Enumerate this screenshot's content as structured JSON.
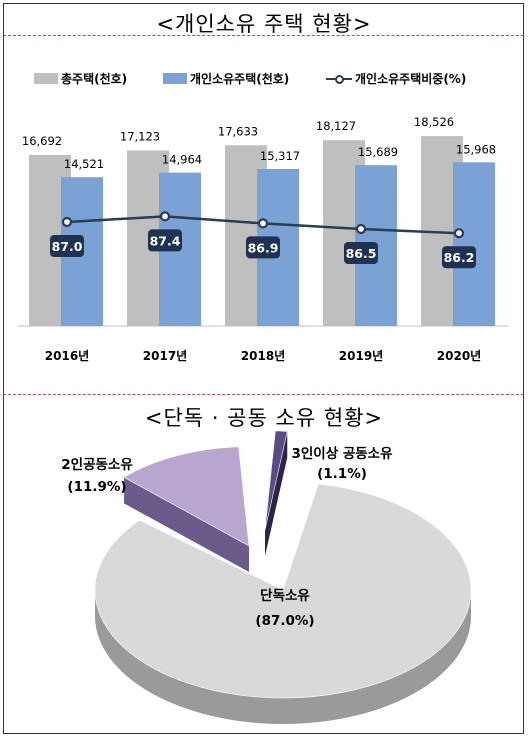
{
  "bar_chart": {
    "title": "<개인소유 주택 현황>",
    "legend": [
      "총주택(천호)",
      "개인소유주택(천호)",
      "개인소유주택비중(%)"
    ],
    "colors": {
      "total": "#bfbfbf",
      "individual": "#7ba2d4",
      "line": "#2b3c54",
      "badge": "#1f3252"
    }
  },
  "pie_chart": {
    "title": "<단독 · 공동 소유 현황>",
    "colors": {
      "single": "#d9d9d9",
      "two": "#b8a6cf",
      "three": "#5b4a86"
    }
  },
  "chart_data": [
    {
      "type": "bar",
      "categories": [
        "2016년",
        "2017년",
        "2018년",
        "2019년",
        "2020년"
      ],
      "series": [
        {
          "name": "총주택(천호)",
          "values": [
            16692,
            17123,
            17633,
            18127,
            18526
          ],
          "labels": [
            "16,692",
            "17,123",
            "17,633",
            "18,127",
            "18,526"
          ]
        },
        {
          "name": "개인소유주택(천호)",
          "values": [
            14521,
            14964,
            15317,
            15689,
            15968
          ],
          "labels": [
            "14,521",
            "14,964",
            "15,317",
            "15,689",
            "15,968"
          ]
        },
        {
          "name": "개인소유주택비중(%)",
          "type": "line",
          "values": [
            87.0,
            87.4,
            86.9,
            86.5,
            86.2
          ],
          "labels": [
            "87.0",
            "87.4",
            "86.9",
            "86.5",
            "86.2"
          ]
        }
      ],
      "title": "<개인소유 주택 현황>",
      "legend_position": "top"
    },
    {
      "type": "pie",
      "title": "<단독 · 공동 소유 현황>",
      "slices": [
        {
          "label": "단독소유",
          "value": 87.0,
          "value_label": "(87.0%)"
        },
        {
          "label": "2인공동소유",
          "value": 11.9,
          "value_label": "(11.9%)"
        },
        {
          "label": "3인이상 공동소유",
          "value": 1.1,
          "value_label": "(1.1%)"
        }
      ]
    }
  ]
}
